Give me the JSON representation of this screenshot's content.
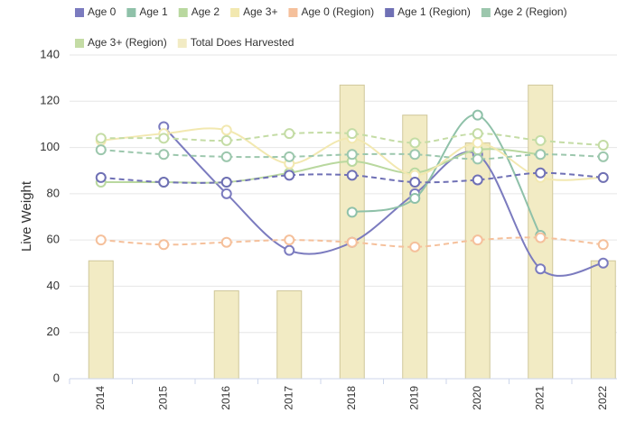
{
  "chart_data": {
    "type": "combo",
    "y_label": "Live Weight",
    "categories": [
      "2014",
      "2015",
      "2016",
      "2017",
      "2018",
      "2019",
      "2020",
      "2021",
      "2022"
    ],
    "ylim": [
      0,
      140
    ],
    "yticks": [
      0,
      20,
      40,
      60,
      80,
      100,
      120,
      140
    ],
    "grid": true,
    "series": [
      {
        "name": "Age 0",
        "color": "#7b7bbf",
        "type": "line",
        "dashed": false,
        "values": [
          null,
          109,
          80,
          55.5,
          59,
          80,
          97,
          47.5,
          50
        ]
      },
      {
        "name": "Age 1",
        "color": "#8fc1a9",
        "type": "line",
        "dashed": false,
        "values": [
          null,
          null,
          null,
          null,
          72,
          78,
          114,
          62,
          null
        ]
      },
      {
        "name": "Age 2",
        "color": "#b9d89f",
        "type": "line",
        "dashed": false,
        "values": [
          85,
          85,
          85,
          89,
          94,
          89,
          99,
          97,
          null
        ]
      },
      {
        "name": "Age 3+",
        "color": "#f2e8b0",
        "type": "line",
        "dashed": false,
        "values": [
          103,
          106,
          107.5,
          93,
          104,
          88,
          102,
          87,
          87
        ]
      },
      {
        "name": "Age 0 (Region)",
        "color": "#f5c09b",
        "type": "line",
        "dashed": true,
        "values": [
          60,
          58,
          59,
          60,
          59,
          57,
          60,
          61,
          58
        ]
      },
      {
        "name": "Age 1 (Region)",
        "color": "#6f70b5",
        "type": "line",
        "dashed": true,
        "values": [
          87,
          85,
          85,
          88,
          88,
          85,
          86,
          89,
          87
        ]
      },
      {
        "name": "Age 2 (Region)",
        "color": "#9cc7ad",
        "type": "line",
        "dashed": true,
        "values": [
          99,
          97,
          96,
          96,
          97,
          97,
          95,
          97,
          96
        ]
      },
      {
        "name": "Age 3+ (Region)",
        "color": "#c4dca5",
        "type": "line",
        "dashed": true,
        "values": [
          104,
          104,
          103,
          106,
          106,
          102,
          106,
          103,
          101
        ]
      },
      {
        "name": "Total Does Harvested",
        "color": "#f2ebc4",
        "type": "bar",
        "values": [
          51,
          null,
          38,
          38,
          127,
          114,
          102,
          127,
          51
        ]
      }
    ]
  }
}
